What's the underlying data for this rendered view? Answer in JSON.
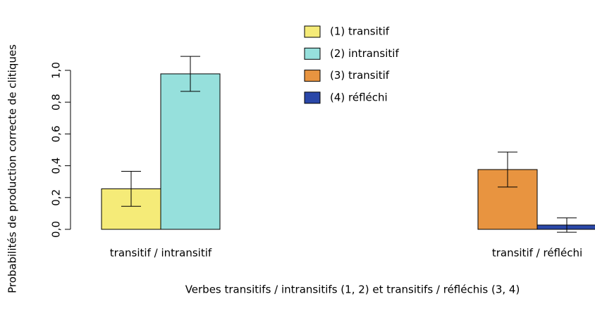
{
  "chart_data": {
    "type": "bar",
    "ylabel": "Probabilités de production correcte de clitiques",
    "xlabel": "Verbes transitifs / intransitifs (1, 2) et transitifs / réfléchis (3, 4)",
    "categories": [
      "transitif / intransitif",
      "transitif / réfléchi"
    ],
    "series": [
      {
        "name": "(1) transitif",
        "color": "#f5eb78",
        "values": [
          0.255,
          null
        ],
        "errors": [
          0.11,
          null
        ]
      },
      {
        "name": "(2) intransitif",
        "color": "#96e0dc",
        "values": [
          0.978,
          null
        ],
        "errors": [
          0.11,
          null
        ]
      },
      {
        "name": "(3) transitif",
        "color": "#e89440",
        "values": [
          null,
          0.376
        ],
        "errors": [
          null,
          0.11
        ]
      },
      {
        "name": "(4) réfléchi",
        "color": "#2a47a8",
        "values": [
          null,
          0.027
        ],
        "errors": [
          null,
          0.045
        ]
      }
    ],
    "ylim": [
      0,
      1
    ],
    "yticks": [
      {
        "value": 0,
        "label": "0,0"
      },
      {
        "value": 0.2,
        "label": "0,2"
      },
      {
        "value": 0.4,
        "label": "0,4"
      },
      {
        "value": 0.6,
        "label": "0,6"
      },
      {
        "value": 0.8,
        "label": "0,8"
      },
      {
        "value": 1,
        "label": "1,0"
      }
    ],
    "legend": "top"
  }
}
